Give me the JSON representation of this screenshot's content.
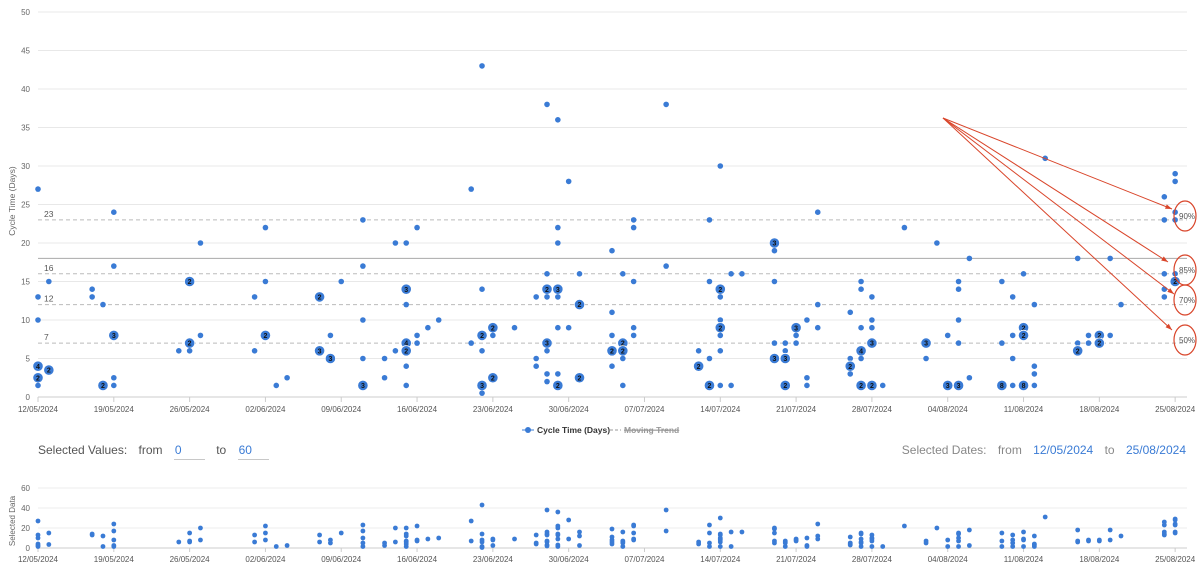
{
  "chart_data": {
    "type": "scatter",
    "ylabel": "Cycle Time (Days)",
    "ylim": [
      0,
      50
    ],
    "yticks": [
      "0",
      "5",
      "10",
      "15",
      "20",
      "25",
      "30",
      "35",
      "40",
      "45",
      "50"
    ],
    "xlim": [
      "2024-05-12",
      "2024-08-26"
    ],
    "xticks": [
      "12/05/2024",
      "19/05/2024",
      "26/05/2024",
      "02/06/2024",
      "09/06/2024",
      "16/06/2024",
      "23/06/2024",
      "30/06/2024",
      "07/07/2024",
      "14/07/2024",
      "21/07/2024",
      "28/07/2024",
      "04/08/2024",
      "11/08/2024",
      "18/08/2024",
      "25/08/2024"
    ],
    "grid": true,
    "legend": "bottom-center",
    "series": [
      {
        "name": "Cycle Time (Days)",
        "color": "#3a7bd5"
      },
      {
        "name": "Moving Trend",
        "color": "#999999",
        "hidden": true
      }
    ],
    "mean_line": 18,
    "percentiles": [
      {
        "value": 23,
        "label": "23",
        "tag": "90%"
      },
      {
        "value": 16,
        "label": "16",
        "tag": "85%"
      },
      {
        "value": 12,
        "label": "12",
        "tag": "70%"
      },
      {
        "value": 7,
        "label": "7",
        "tag": "50%"
      }
    ],
    "points": [
      {
        "x": "2024-05-12",
        "y": 27
      },
      {
        "x": "2024-05-12",
        "y": 13
      },
      {
        "x": "2024-05-12",
        "y": 10
      },
      {
        "x": "2024-05-12",
        "y": 4,
        "n": 4
      },
      {
        "x": "2024-05-12",
        "y": 2.5,
        "n": 2
      },
      {
        "x": "2024-05-12",
        "y": 1.5
      },
      {
        "x": "2024-05-13",
        "y": 15
      },
      {
        "x": "2024-05-13",
        "y": 3.5,
        "n": 2
      },
      {
        "x": "2024-05-17",
        "y": 14
      },
      {
        "x": "2024-05-17",
        "y": 13
      },
      {
        "x": "2024-05-18",
        "y": 12
      },
      {
        "x": "2024-05-18",
        "y": 1.5,
        "n": 2
      },
      {
        "x": "2024-05-19",
        "y": 24
      },
      {
        "x": "2024-05-19",
        "y": 17
      },
      {
        "x": "2024-05-19",
        "y": 8,
        "n": 3
      },
      {
        "x": "2024-05-19",
        "y": 2.5
      },
      {
        "x": "2024-05-19",
        "y": 1.5
      },
      {
        "x": "2024-05-25",
        "y": 6
      },
      {
        "x": "2024-05-26",
        "y": 15,
        "n": 2
      },
      {
        "x": "2024-05-26",
        "y": 7,
        "n": 2
      },
      {
        "x": "2024-05-26",
        "y": 6
      },
      {
        "x": "2024-05-27",
        "y": 20
      },
      {
        "x": "2024-05-27",
        "y": 8
      },
      {
        "x": "2024-06-01",
        "y": 13
      },
      {
        "x": "2024-06-01",
        "y": 6
      },
      {
        "x": "2024-06-02",
        "y": 22
      },
      {
        "x": "2024-06-02",
        "y": 15
      },
      {
        "x": "2024-06-02",
        "y": 8,
        "n": 2
      },
      {
        "x": "2024-06-03",
        "y": 1.5
      },
      {
        "x": "2024-06-04",
        "y": 2.5
      },
      {
        "x": "2024-06-07",
        "y": 13,
        "n": 2
      },
      {
        "x": "2024-06-07",
        "y": 6,
        "n": 3
      },
      {
        "x": "2024-06-08",
        "y": 8
      },
      {
        "x": "2024-06-08",
        "y": 5,
        "n": 3
      },
      {
        "x": "2024-06-09",
        "y": 15
      },
      {
        "x": "2024-06-11",
        "y": 23
      },
      {
        "x": "2024-06-11",
        "y": 17
      },
      {
        "x": "2024-06-11",
        "y": 10
      },
      {
        "x": "2024-06-11",
        "y": 5
      },
      {
        "x": "2024-06-11",
        "y": 1.5,
        "n": 3
      },
      {
        "x": "2024-06-13",
        "y": 5
      },
      {
        "x": "2024-06-13",
        "y": 2.5
      },
      {
        "x": "2024-06-14",
        "y": 20
      },
      {
        "x": "2024-06-14",
        "y": 6
      },
      {
        "x": "2024-06-15",
        "y": 20
      },
      {
        "x": "2024-06-15",
        "y": 14,
        "n": 3
      },
      {
        "x": "2024-06-15",
        "y": 12
      },
      {
        "x": "2024-06-15",
        "y": 7,
        "n": 4
      },
      {
        "x": "2024-06-15",
        "y": 6,
        "n": 2
      },
      {
        "x": "2024-06-15",
        "y": 4
      },
      {
        "x": "2024-06-15",
        "y": 1.5
      },
      {
        "x": "2024-06-16",
        "y": 22
      },
      {
        "x": "2024-06-16",
        "y": 8
      },
      {
        "x": "2024-06-16",
        "y": 7
      },
      {
        "x": "2024-06-17",
        "y": 9
      },
      {
        "x": "2024-06-18",
        "y": 10
      },
      {
        "x": "2024-06-21",
        "y": 27
      },
      {
        "x": "2024-06-21",
        "y": 7
      },
      {
        "x": "2024-06-22",
        "y": 43
      },
      {
        "x": "2024-06-22",
        "y": 14
      },
      {
        "x": "2024-06-22",
        "y": 8,
        "n": 2
      },
      {
        "x": "2024-06-22",
        "y": 6
      },
      {
        "x": "2024-06-22",
        "y": 1.5,
        "n": 3
      },
      {
        "x": "2024-06-22",
        "y": 0.5
      },
      {
        "x": "2024-06-23",
        "y": 9,
        "n": 2
      },
      {
        "x": "2024-06-23",
        "y": 8
      },
      {
        "x": "2024-06-23",
        "y": 2.5,
        "n": 2
      },
      {
        "x": "2024-06-25",
        "y": 9
      },
      {
        "x": "2024-06-27",
        "y": 13
      },
      {
        "x": "2024-06-27",
        "y": 5
      },
      {
        "x": "2024-06-27",
        "y": 4
      },
      {
        "x": "2024-06-28",
        "y": 38
      },
      {
        "x": "2024-06-28",
        "y": 16
      },
      {
        "x": "2024-06-28",
        "y": 14,
        "n": 2
      },
      {
        "x": "2024-06-28",
        "y": 13
      },
      {
        "x": "2024-06-28",
        "y": 7,
        "n": 3
      },
      {
        "x": "2024-06-28",
        "y": 6
      },
      {
        "x": "2024-06-28",
        "y": 3
      },
      {
        "x": "2024-06-28",
        "y": 2
      },
      {
        "x": "2024-06-29",
        "y": 36
      },
      {
        "x": "2024-06-29",
        "y": 22
      },
      {
        "x": "2024-06-29",
        "y": 20
      },
      {
        "x": "2024-06-29",
        "y": 14,
        "n": 3
      },
      {
        "x": "2024-06-29",
        "y": 13
      },
      {
        "x": "2024-06-29",
        "y": 9
      },
      {
        "x": "2024-06-29",
        "y": 3
      },
      {
        "x": "2024-06-29",
        "y": 1.5,
        "n": 2
      },
      {
        "x": "2024-06-30",
        "y": 28
      },
      {
        "x": "2024-06-30",
        "y": 9
      },
      {
        "x": "2024-07-01",
        "y": 16
      },
      {
        "x": "2024-07-01",
        "y": 12,
        "n": 2
      },
      {
        "x": "2024-07-01",
        "y": 2.5,
        "n": 2
      },
      {
        "x": "2024-07-04",
        "y": 19
      },
      {
        "x": "2024-07-04",
        "y": 11
      },
      {
        "x": "2024-07-04",
        "y": 8
      },
      {
        "x": "2024-07-04",
        "y": 6,
        "n": 2
      },
      {
        "x": "2024-07-04",
        "y": 4
      },
      {
        "x": "2024-07-05",
        "y": 16
      },
      {
        "x": "2024-07-05",
        "y": 7,
        "n": 2
      },
      {
        "x": "2024-07-05",
        "y": 6,
        "n": 2
      },
      {
        "x": "2024-07-05",
        "y": 5
      },
      {
        "x": "2024-07-05",
        "y": 1.5
      },
      {
        "x": "2024-07-06",
        "y": 23
      },
      {
        "x": "2024-07-06",
        "y": 22
      },
      {
        "x": "2024-07-06",
        "y": 15
      },
      {
        "x": "2024-07-06",
        "y": 9
      },
      {
        "x": "2024-07-06",
        "y": 8
      },
      {
        "x": "2024-07-09",
        "y": 38
      },
      {
        "x": "2024-07-09",
        "y": 17
      },
      {
        "x": "2024-07-12",
        "y": 6
      },
      {
        "x": "2024-07-12",
        "y": 4,
        "n": 2
      },
      {
        "x": "2024-07-13",
        "y": 23
      },
      {
        "x": "2024-07-13",
        "y": 15
      },
      {
        "x": "2024-07-13",
        "y": 5
      },
      {
        "x": "2024-07-13",
        "y": 1.5,
        "n": 2
      },
      {
        "x": "2024-07-14",
        "y": 30
      },
      {
        "x": "2024-07-14",
        "y": 14,
        "n": 2
      },
      {
        "x": "2024-07-14",
        "y": 13
      },
      {
        "x": "2024-07-14",
        "y": 10
      },
      {
        "x": "2024-07-14",
        "y": 9,
        "n": 2
      },
      {
        "x": "2024-07-14",
        "y": 8
      },
      {
        "x": "2024-07-14",
        "y": 6
      },
      {
        "x": "2024-07-14",
        "y": 1.5
      },
      {
        "x": "2024-07-15",
        "y": 16
      },
      {
        "x": "2024-07-15",
        "y": 1.5
      },
      {
        "x": "2024-07-16",
        "y": 16
      },
      {
        "x": "2024-07-19",
        "y": 20,
        "n": 3
      },
      {
        "x": "2024-07-19",
        "y": 19
      },
      {
        "x": "2024-07-19",
        "y": 15
      },
      {
        "x": "2024-07-19",
        "y": 7
      },
      {
        "x": "2024-07-19",
        "y": 5,
        "n": 3
      },
      {
        "x": "2024-07-20",
        "y": 7
      },
      {
        "x": "2024-07-20",
        "y": 6
      },
      {
        "x": "2024-07-20",
        "y": 5,
        "n": 3
      },
      {
        "x": "2024-07-20",
        "y": 1.5,
        "n": 2
      },
      {
        "x": "2024-07-21",
        "y": 9,
        "n": 3
      },
      {
        "x": "2024-07-21",
        "y": 8
      },
      {
        "x": "2024-07-21",
        "y": 7
      },
      {
        "x": "2024-07-22",
        "y": 10
      },
      {
        "x": "2024-07-22",
        "y": 2.5
      },
      {
        "x": "2024-07-22",
        "y": 1.5
      },
      {
        "x": "2024-07-23",
        "y": 24
      },
      {
        "x": "2024-07-23",
        "y": 12
      },
      {
        "x": "2024-07-23",
        "y": 9
      },
      {
        "x": "2024-07-26",
        "y": 11
      },
      {
        "x": "2024-07-26",
        "y": 5
      },
      {
        "x": "2024-07-26",
        "y": 4,
        "n": 2
      },
      {
        "x": "2024-07-26",
        "y": 3
      },
      {
        "x": "2024-07-27",
        "y": 15
      },
      {
        "x": "2024-07-27",
        "y": 14
      },
      {
        "x": "2024-07-27",
        "y": 9
      },
      {
        "x": "2024-07-27",
        "y": 6,
        "n": 4
      },
      {
        "x": "2024-07-27",
        "y": 5
      },
      {
        "x": "2024-07-27",
        "y": 1.5,
        "n": 2
      },
      {
        "x": "2024-07-28",
        "y": 13
      },
      {
        "x": "2024-07-28",
        "y": 10
      },
      {
        "x": "2024-07-28",
        "y": 9
      },
      {
        "x": "2024-07-28",
        "y": 7,
        "n": 3
      },
      {
        "x": "2024-07-28",
        "y": 1.5,
        "n": 2
      },
      {
        "x": "2024-07-29",
        "y": 1.5
      },
      {
        "x": "2024-07-31",
        "y": 22
      },
      {
        "x": "2024-08-02",
        "y": 7,
        "n": 3
      },
      {
        "x": "2024-08-02",
        "y": 5
      },
      {
        "x": "2024-08-03",
        "y": 20
      },
      {
        "x": "2024-08-04",
        "y": 8
      },
      {
        "x": "2024-08-04",
        "y": 1.5,
        "n": 3
      },
      {
        "x": "2024-08-05",
        "y": 15
      },
      {
        "x": "2024-08-05",
        "y": 14
      },
      {
        "x": "2024-08-05",
        "y": 10
      },
      {
        "x": "2024-08-05",
        "y": 7
      },
      {
        "x": "2024-08-05",
        "y": 1.5,
        "n": 3
      },
      {
        "x": "2024-08-06",
        "y": 18
      },
      {
        "x": "2024-08-06",
        "y": 2.5
      },
      {
        "x": "2024-08-09",
        "y": 15
      },
      {
        "x": "2024-08-09",
        "y": 7
      },
      {
        "x": "2024-08-09",
        "y": 1.5,
        "n": 8
      },
      {
        "x": "2024-08-10",
        "y": 13
      },
      {
        "x": "2024-08-10",
        "y": 8
      },
      {
        "x": "2024-08-10",
        "y": 5
      },
      {
        "x": "2024-08-10",
        "y": 1.5
      },
      {
        "x": "2024-08-11",
        "y": 16
      },
      {
        "x": "2024-08-11",
        "y": 9,
        "n": 2
      },
      {
        "x": "2024-08-11",
        "y": 8,
        "n": 2
      },
      {
        "x": "2024-08-11",
        "y": 1.5,
        "n": 8
      },
      {
        "x": "2024-08-12",
        "y": 12
      },
      {
        "x": "2024-08-12",
        "y": 4
      },
      {
        "x": "2024-08-12",
        "y": 3
      },
      {
        "x": "2024-08-12",
        "y": 1.5
      },
      {
        "x": "2024-08-13",
        "y": 31
      },
      {
        "x": "2024-08-16",
        "y": 18
      },
      {
        "x": "2024-08-16",
        "y": 7
      },
      {
        "x": "2024-08-16",
        "y": 6,
        "n": 2
      },
      {
        "x": "2024-08-17",
        "y": 8
      },
      {
        "x": "2024-08-17",
        "y": 7
      },
      {
        "x": "2024-08-18",
        "y": 8,
        "n": 2
      },
      {
        "x": "2024-08-18",
        "y": 7,
        "n": 2
      },
      {
        "x": "2024-08-19",
        "y": 18
      },
      {
        "x": "2024-08-19",
        "y": 8
      },
      {
        "x": "2024-08-20",
        "y": 12
      },
      {
        "x": "2024-08-24",
        "y": 26
      },
      {
        "x": "2024-08-24",
        "y": 23
      },
      {
        "x": "2024-08-24",
        "y": 16
      },
      {
        "x": "2024-08-24",
        "y": 14
      },
      {
        "x": "2024-08-24",
        "y": 13
      },
      {
        "x": "2024-08-25",
        "y": 29
      },
      {
        "x": "2024-08-25",
        "y": 28
      },
      {
        "x": "2024-08-25",
        "y": 24
      },
      {
        "x": "2024-08-25",
        "y": 23
      },
      {
        "x": "2024-08-25",
        "y": 16
      },
      {
        "x": "2024-08-25",
        "y": 15,
        "n": 2
      }
    ]
  },
  "nav_chart": {
    "ylabel": "Selected Data",
    "ylim": [
      0,
      60
    ],
    "yticks": [
      "0",
      "20",
      "40",
      "60"
    ]
  },
  "controls": {
    "selected_values_label": "Selected Values:",
    "from_label": "from",
    "to_label": "to",
    "value_from": "0",
    "value_to": "60",
    "selected_dates_label": "Selected Dates:",
    "dates_from_label": "from",
    "dates_to_label": "to",
    "date_from": "12/05/2024",
    "date_to": "25/08/2024"
  },
  "colors": {
    "point": "#3a7bd5",
    "annotation": "#d9452a",
    "mean_line": "#aaaaaa",
    "percentile_line": "#bbbbbb"
  }
}
